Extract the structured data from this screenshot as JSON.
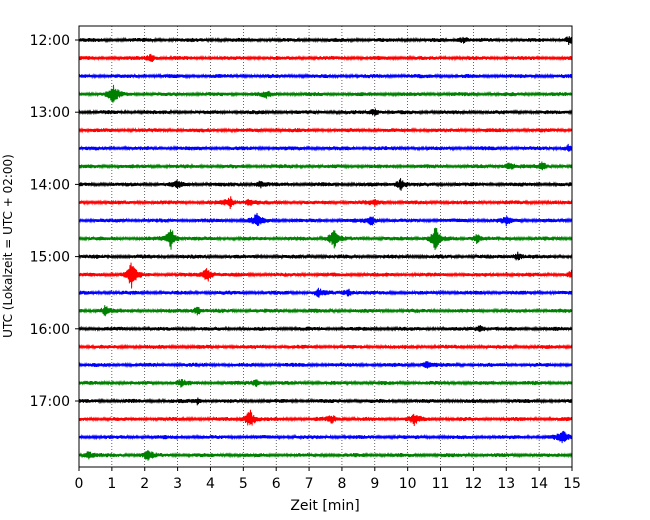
{
  "chart_data": {
    "type": "line",
    "title": "",
    "xlabel": "Zeit  [min]",
    "ylabel": "UTC (Lokalzeit = UTC + 02:00)",
    "xlim": [
      0,
      15
    ],
    "x_ticks": [
      0,
      1,
      2,
      3,
      4,
      5,
      6,
      7,
      8,
      9,
      10,
      11,
      12,
      13,
      14,
      15
    ],
    "grid": "vertical dotted lines at each minute",
    "trace_colors": [
      "#000000",
      "#ff0000",
      "#0000ff",
      "#008000"
    ],
    "y_tick_labels": [
      "12:00",
      "13:00",
      "14:00",
      "15:00",
      "16:00",
      "17:00"
    ],
    "y_tick_trace_index": [
      0,
      4,
      8,
      12,
      16,
      20
    ],
    "traces": [
      {
        "start": "12:00",
        "events": [
          [
            11.7,
            0.9
          ],
          [
            14.9,
            0.9
          ]
        ]
      },
      {
        "start": "12:15",
        "events": [
          [
            2.2,
            1.0
          ]
        ]
      },
      {
        "start": "12:30",
        "events": []
      },
      {
        "start": "12:45",
        "events": [
          [
            1.05,
            2.2
          ],
          [
            5.7,
            0.7
          ]
        ]
      },
      {
        "start": "13:00",
        "events": [
          [
            9.0,
            0.9
          ]
        ]
      },
      {
        "start": "13:15",
        "events": []
      },
      {
        "start": "13:30",
        "events": [
          [
            14.9,
            0.9
          ]
        ]
      },
      {
        "start": "13:45",
        "events": [
          [
            13.1,
            1.0
          ],
          [
            14.1,
            1.0
          ]
        ]
      },
      {
        "start": "14:00",
        "events": [
          [
            3.0,
            0.9
          ],
          [
            5.5,
            0.8
          ],
          [
            9.8,
            1.5
          ]
        ]
      },
      {
        "start": "14:15",
        "events": [
          [
            4.6,
            1.3
          ],
          [
            5.2,
            0.9
          ],
          [
            9.0,
            0.7
          ]
        ]
      },
      {
        "start": "14:30",
        "events": [
          [
            5.4,
            1.6
          ],
          [
            8.9,
            1.1
          ],
          [
            13.0,
            0.9
          ]
        ]
      },
      {
        "start": "14:45",
        "events": [
          [
            2.8,
            2.6
          ],
          [
            7.75,
            2.4
          ],
          [
            10.85,
            3.0
          ],
          [
            12.1,
            1.2
          ]
        ]
      },
      {
        "start": "15:00",
        "events": [
          [
            13.35,
            1.0
          ]
        ]
      },
      {
        "start": "15:15",
        "events": [
          [
            1.6,
            3.0
          ],
          [
            3.9,
            2.0
          ],
          [
            15.0,
            0.9
          ]
        ]
      },
      {
        "start": "15:30",
        "events": [
          [
            7.3,
            0.9
          ],
          [
            8.2,
            0.9
          ]
        ]
      },
      {
        "start": "15:45",
        "events": [
          [
            0.8,
            1.2
          ],
          [
            3.6,
            1.1
          ]
        ]
      },
      {
        "start": "16:00",
        "events": [
          [
            12.2,
            0.9
          ]
        ]
      },
      {
        "start": "16:15",
        "events": []
      },
      {
        "start": "16:30",
        "events": [
          [
            10.6,
            0.8
          ]
        ]
      },
      {
        "start": "16:45",
        "events": [
          [
            3.1,
            0.8
          ],
          [
            5.4,
            0.8
          ]
        ]
      },
      {
        "start": "17:00",
        "events": [
          [
            3.6,
            0.7
          ]
        ]
      },
      {
        "start": "17:15",
        "events": [
          [
            5.2,
            2.3
          ],
          [
            7.7,
            0.9
          ],
          [
            10.2,
            1.3
          ]
        ]
      },
      {
        "start": "17:30",
        "events": [
          [
            14.7,
            1.8
          ]
        ]
      },
      {
        "start": "17:45",
        "events": [
          [
            2.1,
            1.2
          ],
          [
            0.3,
            1.0
          ]
        ]
      }
    ]
  }
}
